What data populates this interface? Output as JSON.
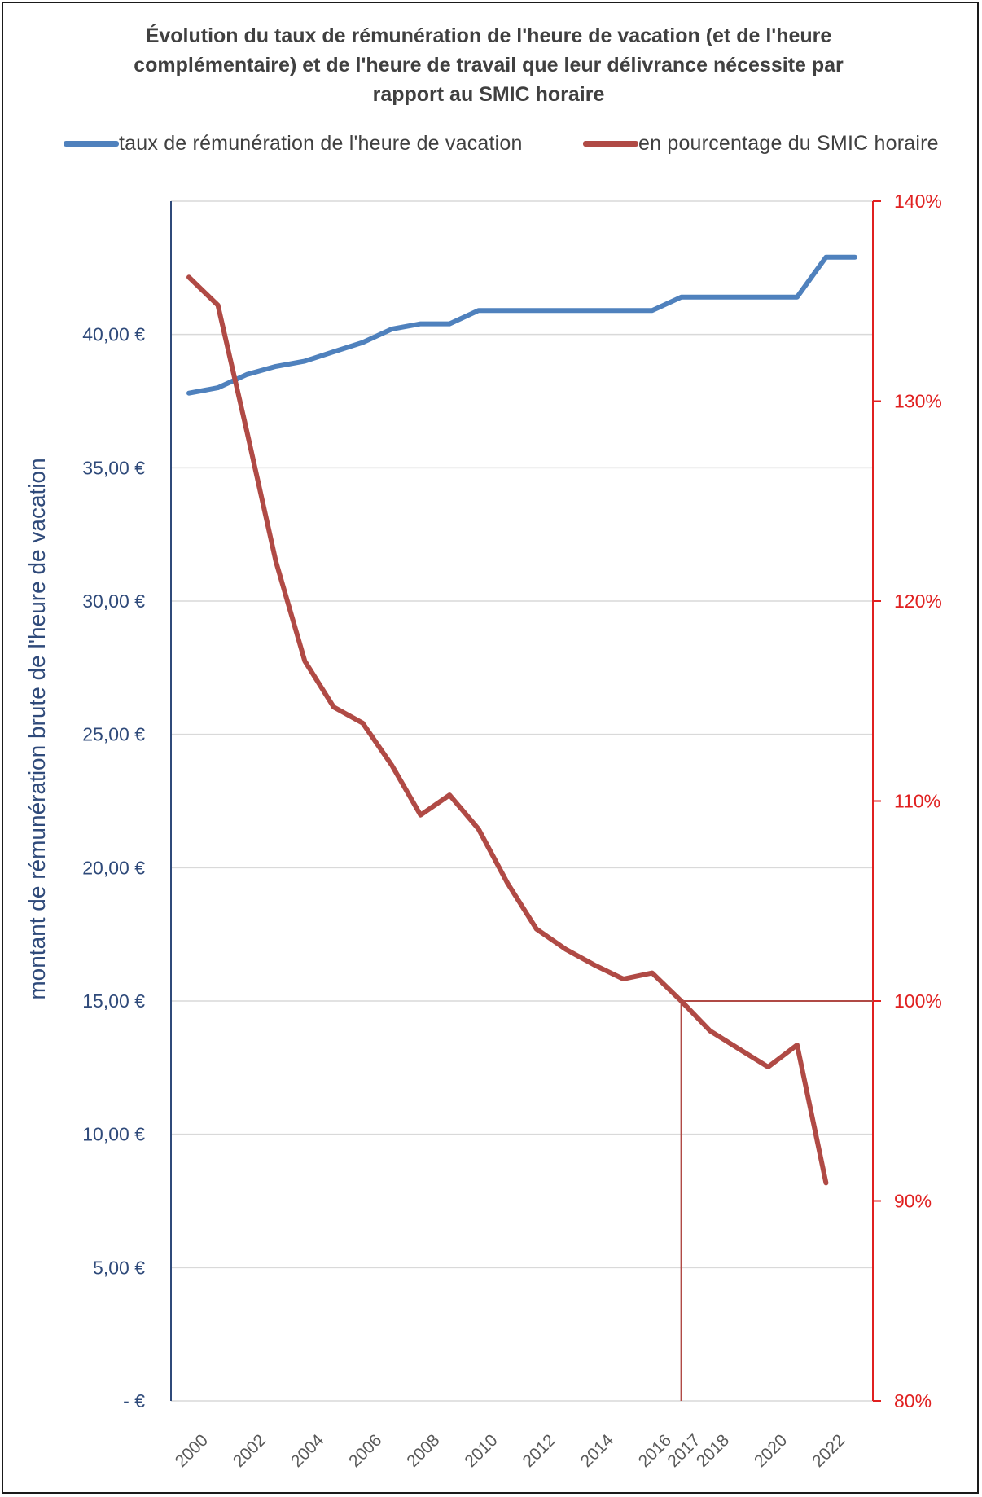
{
  "chart_data": {
    "type": "line",
    "title_lines": [
      "Évolution du taux de rémunération de l'heure de vacation (et de l'heure",
      "complémentaire) et de l'heure de travail que leur délivrance nécessite par",
      "rapport au SMIC horaire"
    ],
    "ylabel": "montant de rémunération brute de l'heure de vacation",
    "legend_position": "top",
    "grid": true,
    "x": [
      2000,
      2001,
      2002,
      2003,
      2004,
      2005,
      2006,
      2007,
      2008,
      2009,
      2010,
      2011,
      2012,
      2013,
      2014,
      2015,
      2016,
      2017,
      2018,
      2019,
      2020,
      2021,
      2022,
      2023
    ],
    "x_tick_labels": [
      "2000",
      "2002",
      "2004",
      "2006",
      "2008",
      "2010",
      "2012",
      "2014",
      "2016",
      "2017",
      "2018",
      "2020",
      "2022"
    ],
    "x_tick_values": [
      2000,
      2002,
      2004,
      2006,
      2008,
      2010,
      2012,
      2014,
      2016,
      2017,
      2018,
      2020,
      2022
    ],
    "highlight_x": 2017,
    "highlight_x_label": "2017",
    "highlight_y_right": 100,
    "highlight_color": "#e02020",
    "y_left": {
      "range": [
        0,
        45
      ],
      "ticks": [
        0,
        5,
        10,
        15,
        20,
        25,
        30,
        35,
        40
      ],
      "tick_labels": [
        "-   €",
        "5,00  €",
        "10,00  €",
        "15,00  €",
        "20,00  €",
        "25,00  €",
        "30,00  €",
        "35,00  €",
        "40,00  €"
      ],
      "color": "#2f4a7a"
    },
    "y_right": {
      "range": [
        80,
        140
      ],
      "ticks": [
        80,
        90,
        100,
        110,
        120,
        130,
        140
      ],
      "tick_labels": [
        "80%",
        "90%",
        "100%",
        "110%",
        "120%",
        "130%",
        "140%"
      ],
      "color": "#e02020"
    },
    "series": [
      {
        "name": "taux de rémunération de l'heure de vacation",
        "axis": "left",
        "color": "#4f81bd",
        "x": [
          2000,
          2001,
          2002,
          2003,
          2004,
          2005,
          2006,
          2007,
          2008,
          2009,
          2010,
          2011,
          2012,
          2013,
          2014,
          2015,
          2016,
          2017,
          2018,
          2019,
          2020,
          2021,
          2022,
          2023
        ],
        "values": [
          37.8,
          38.0,
          38.5,
          38.8,
          39.0,
          39.35,
          39.7,
          40.2,
          40.4,
          40.4,
          40.9,
          40.9,
          40.9,
          40.9,
          40.9,
          40.9,
          40.9,
          41.4,
          41.4,
          41.4,
          41.4,
          41.4,
          42.9,
          42.9
        ]
      },
      {
        "name": "en pourcentage du SMIC horaire",
        "axis": "right",
        "color": "#b04a45",
        "x": [
          2000,
          2001,
          2002,
          2003,
          2004,
          2005,
          2006,
          2007,
          2008,
          2009,
          2010,
          2011,
          2012,
          2013,
          2014,
          2015,
          2016,
          2017,
          2018,
          2019,
          2020,
          2021,
          2022
        ],
        "values": [
          136.2,
          134.8,
          128.5,
          122.0,
          117.0,
          114.7,
          113.9,
          111.8,
          109.3,
          110.3,
          108.6,
          105.9,
          103.6,
          102.6,
          101.8,
          101.1,
          101.4,
          100.0,
          98.5,
          97.6,
          96.7,
          97.8,
          90.9
        ]
      }
    ]
  }
}
